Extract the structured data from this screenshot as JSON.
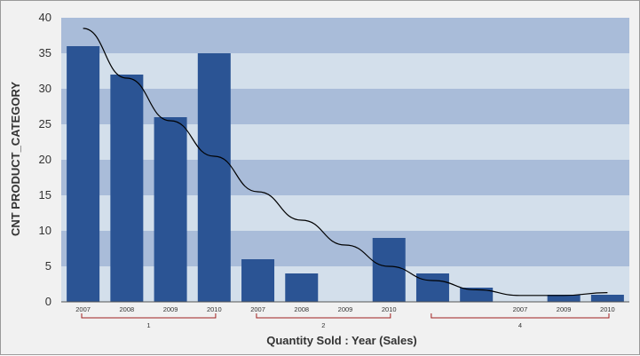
{
  "chart_data": {
    "type": "bar",
    "title": "",
    "xlabel": "Quantity Sold : Year (Sales)",
    "ylabel": "CNT PRODUCT_CATEGORY",
    "ylim": [
      0,
      40
    ],
    "yticks": [
      0,
      5,
      10,
      15,
      20,
      25,
      30,
      35,
      40
    ],
    "groups": [
      {
        "label": "1",
        "categories": [
          "2007",
          "2008",
          "2009",
          "2010"
        ]
      },
      {
        "label": "2",
        "categories": [
          "2007",
          "2008",
          "2009",
          "2010"
        ]
      },
      {
        "label": "4",
        "categories": [
          "",
          "",
          "2007",
          "2009",
          "2010"
        ]
      }
    ],
    "categories": [
      "2007",
      "2008",
      "2009",
      "2010",
      "2007",
      "2008",
      "2009",
      "2010",
      "",
      "",
      "2007",
      "2009",
      "2010"
    ],
    "values": [
      36,
      32,
      26,
      35,
      6,
      4,
      0,
      9,
      4,
      2,
      0,
      1,
      1
    ],
    "trendline": {
      "type": "polynomial",
      "values": [
        38.5,
        31.5,
        25.5,
        20.5,
        15.5,
        11.5,
        8,
        5,
        3,
        1.7,
        0.9,
        0.9,
        1.3
      ]
    },
    "grid": "banded",
    "colors": {
      "bar": "#2b5494",
      "band_dark": "#a9bcd9",
      "band_light": "#d3dfeb",
      "trend": "#000000",
      "group_bracket": "#a02020"
    }
  }
}
